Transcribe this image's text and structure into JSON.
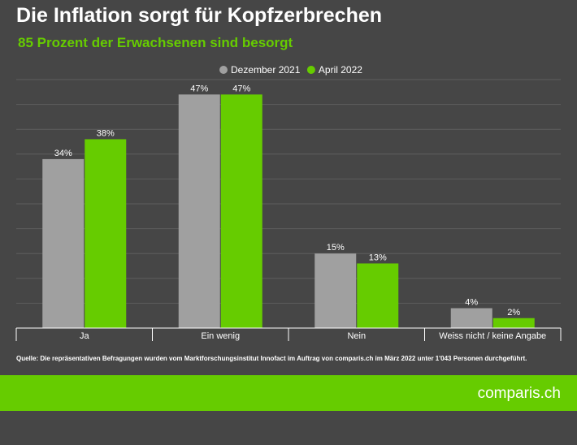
{
  "header": {
    "title": "Die Inflation sorgt für Kopfzerbrechen",
    "subtitle": "85 Prozent der Erwachsenen sind besorgt"
  },
  "colors": {
    "background": "#464646",
    "accent": "#66cc00",
    "series_grey": "#a0a0a0",
    "series_green": "#66cc00"
  },
  "chart_data": {
    "type": "bar",
    "title": "",
    "xlabel": "",
    "ylabel": "",
    "ylim": [
      0,
      50
    ],
    "grid": true,
    "legend_position": "top-center",
    "categories": [
      "Ja",
      "Ein wenig",
      "Nein",
      "Weiss nicht / keine Angabe"
    ],
    "series": [
      {
        "name": "Dezember 2021",
        "color": "#a0a0a0",
        "values": [
          34,
          47,
          15,
          4
        ],
        "labels": [
          "34%",
          "47%",
          "15%",
          "4%"
        ]
      },
      {
        "name": "April 2022",
        "color": "#66cc00",
        "values": [
          38,
          47,
          13,
          2
        ],
        "labels": [
          "38%",
          "47%",
          "13%",
          "2%"
        ]
      }
    ]
  },
  "source": "Quelle: Die repräsentativen Befragungen wurden vom Marktforschungsinstitut Innofact im Auftrag von comparis.ch im März 2022 unter 1'043 Personen durchgeführt.",
  "brand": "comparis.ch"
}
